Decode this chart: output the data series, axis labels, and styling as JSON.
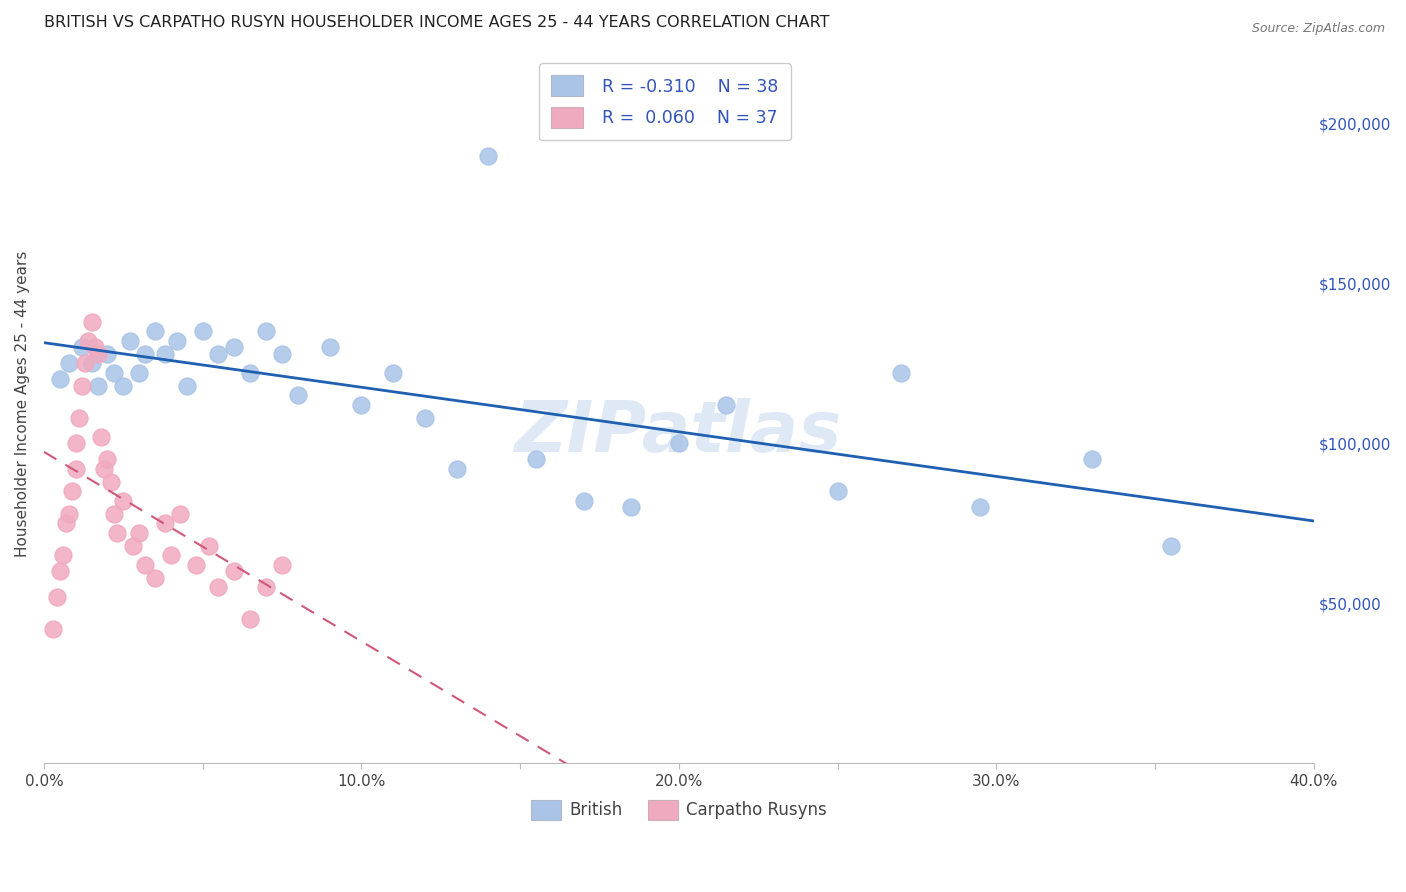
{
  "title": "BRITISH VS CARPATHO RUSYN HOUSEHOLDER INCOME AGES 25 - 44 YEARS CORRELATION CHART",
  "source": "Source: ZipAtlas.com",
  "ylabel": "Householder Income Ages 25 - 44 years",
  "xlim": [
    0.0,
    0.4
  ],
  "ylim": [
    0,
    225000
  ],
  "xtick_labels": [
    "0.0%",
    "",
    "10.0%",
    "",
    "20.0%",
    "",
    "30.0%",
    "",
    "40.0%"
  ],
  "xtick_vals": [
    0.0,
    0.05,
    0.1,
    0.15,
    0.2,
    0.25,
    0.3,
    0.35,
    0.4
  ],
  "ytick_vals": [
    50000,
    100000,
    150000,
    200000
  ],
  "ytick_labels": [
    "$50,000",
    "$100,000",
    "$150,000",
    "$200,000"
  ],
  "legend_british_R": "R = -0.310",
  "legend_british_N": "N = 38",
  "legend_rusyn_R": "R =  0.060",
  "legend_rusyn_N": "N = 37",
  "british_color": "#aac4e8",
  "british_line_color": "#2060b0",
  "rusyn_color": "#f0aabf",
  "rusyn_line_color": "#d05878",
  "label_color": "#3355bb",
  "watermark": "ZIPatlas",
  "background_color": "#ffffff",
  "grid_color": "#cccccc",
  "british_x": [
    0.005,
    0.008,
    0.012,
    0.015,
    0.017,
    0.02,
    0.022,
    0.025,
    0.027,
    0.03,
    0.032,
    0.035,
    0.038,
    0.042,
    0.045,
    0.05,
    0.055,
    0.06,
    0.065,
    0.07,
    0.075,
    0.08,
    0.09,
    0.1,
    0.11,
    0.12,
    0.13,
    0.14,
    0.155,
    0.17,
    0.185,
    0.2,
    0.215,
    0.25,
    0.27,
    0.295,
    0.33,
    0.355
  ],
  "british_y": [
    120000,
    125000,
    130000,
    125000,
    118000,
    128000,
    122000,
    118000,
    132000,
    122000,
    128000,
    135000,
    128000,
    132000,
    118000,
    135000,
    128000,
    130000,
    122000,
    135000,
    128000,
    115000,
    130000,
    112000,
    122000,
    108000,
    92000,
    190000,
    95000,
    82000,
    80000,
    100000,
    112000,
    85000,
    122000,
    80000,
    95000,
    68000
  ],
  "rusyn_x": [
    0.003,
    0.004,
    0.005,
    0.006,
    0.007,
    0.008,
    0.009,
    0.01,
    0.01,
    0.011,
    0.012,
    0.013,
    0.014,
    0.015,
    0.016,
    0.017,
    0.018,
    0.019,
    0.02,
    0.021,
    0.022,
    0.023,
    0.025,
    0.028,
    0.03,
    0.032,
    0.035,
    0.038,
    0.04,
    0.043,
    0.048,
    0.052,
    0.055,
    0.06,
    0.065,
    0.07,
    0.075
  ],
  "rusyn_y": [
    42000,
    52000,
    60000,
    65000,
    75000,
    78000,
    85000,
    92000,
    100000,
    108000,
    118000,
    125000,
    132000,
    138000,
    130000,
    128000,
    102000,
    92000,
    95000,
    88000,
    78000,
    72000,
    82000,
    68000,
    72000,
    62000,
    58000,
    75000,
    65000,
    78000,
    62000,
    68000,
    55000,
    60000,
    45000,
    55000,
    62000
  ]
}
